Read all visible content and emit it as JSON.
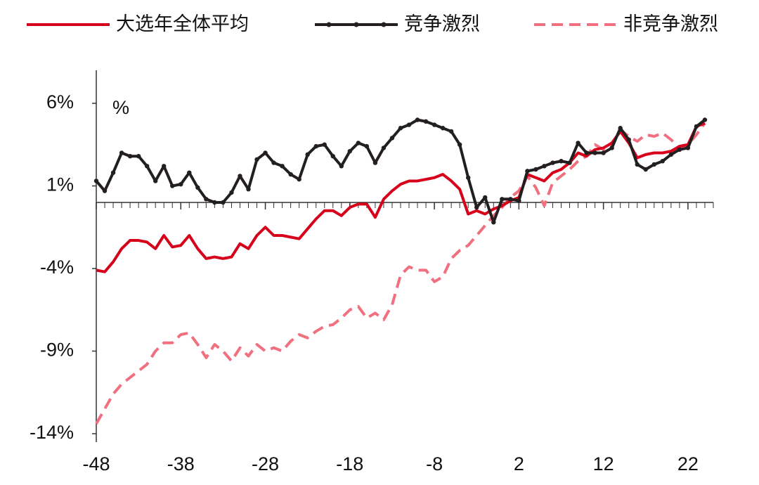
{
  "chart_data": {
    "type": "line",
    "annotation": "%",
    "x": [
      -48,
      -47,
      -46,
      -45,
      -44,
      -43,
      -42,
      -41,
      -40,
      -39,
      -38,
      -37,
      -36,
      -35,
      -34,
      -33,
      -32,
      -31,
      -30,
      -29,
      -28,
      -27,
      -26,
      -25,
      -24,
      -23,
      -22,
      -21,
      -20,
      -19,
      -18,
      -17,
      -16,
      -15,
      -14,
      -13,
      -12,
      -11,
      -10,
      -9,
      -8,
      -7,
      -6,
      -5,
      -4,
      -3,
      -2,
      -1,
      0,
      1,
      2,
      3,
      4,
      5,
      6,
      7,
      8,
      9,
      10,
      11,
      12,
      13,
      14,
      15,
      16,
      17,
      18,
      19,
      20,
      21,
      22,
      23,
      24
    ],
    "series": [
      {
        "name": "大选年全体平均",
        "color": "#d7001a",
        "dash": false,
        "marker": false,
        "values": [
          -4.1,
          -4.2,
          -3.6,
          -2.8,
          -2.3,
          -2.3,
          -2.4,
          -2.8,
          -2.0,
          -2.7,
          -2.6,
          -2.0,
          -2.8,
          -3.4,
          -3.3,
          -3.4,
          -3.3,
          -2.5,
          -2.8,
          -2.0,
          -1.5,
          -2.0,
          -2.0,
          -2.1,
          -2.2,
          -1.6,
          -1.0,
          -0.5,
          -0.5,
          -0.8,
          -0.3,
          -0.1,
          -0.1,
          -0.9,
          0.2,
          0.7,
          1.1,
          1.3,
          1.3,
          1.4,
          1.5,
          1.7,
          1.3,
          0.8,
          -0.7,
          -0.5,
          -0.7,
          -0.4,
          -0.2,
          0.1,
          0.3,
          1.7,
          1.5,
          1.3,
          1.8,
          2.0,
          2.4,
          3.0,
          2.8,
          3.2,
          3.3,
          3.6,
          4.3,
          3.6,
          2.7,
          2.9,
          3.0,
          3.0,
          3.1,
          3.4,
          3.5,
          4.6,
          4.8
        ]
      },
      {
        "name": "竞争激烈",
        "color": "#231f20",
        "dash": false,
        "marker": true,
        "values": [
          1.3,
          0.7,
          1.8,
          3.0,
          2.8,
          2.8,
          2.2,
          1.3,
          2.2,
          1.0,
          1.1,
          1.8,
          0.9,
          0.2,
          0.0,
          0.0,
          0.6,
          1.6,
          0.8,
          2.6,
          3.0,
          2.4,
          2.2,
          1.7,
          1.4,
          2.9,
          3.4,
          3.5,
          2.8,
          2.2,
          3.1,
          3.6,
          3.4,
          2.4,
          3.3,
          3.9,
          4.5,
          4.7,
          5.0,
          4.9,
          4.7,
          4.5,
          4.3,
          3.5,
          1.5,
          -0.3,
          0.3,
          -1.2,
          0.2,
          0.2,
          0.1,
          1.9,
          2.0,
          2.2,
          2.4,
          2.5,
          2.4,
          3.6,
          3.0,
          3.0,
          3.0,
          3.3,
          4.5,
          3.8,
          2.3,
          2.0,
          2.3,
          2.5,
          2.9,
          3.2,
          3.3,
          4.6,
          5.0
        ]
      },
      {
        "name": "非竞争激烈",
        "color": "#f07080",
        "dash": true,
        "marker": false,
        "values": [
          -13.4,
          -12.5,
          -11.6,
          -11.0,
          -10.6,
          -10.2,
          -9.8,
          -9.0,
          -8.5,
          -8.5,
          -8.0,
          -7.9,
          -8.6,
          -9.4,
          -8.6,
          -9.0,
          -9.6,
          -8.8,
          -9.3,
          -8.6,
          -9.0,
          -8.8,
          -9.0,
          -8.4,
          -8.0,
          -8.2,
          -7.8,
          -7.5,
          -7.4,
          -7.0,
          -6.5,
          -6.3,
          -7.0,
          -6.7,
          -7.1,
          -6.2,
          -4.4,
          -3.9,
          -4.1,
          -4.1,
          -4.8,
          -4.5,
          -3.4,
          -2.9,
          -2.6,
          -2.0,
          -1.4,
          -0.8,
          -0.3,
          0.3,
          0.7,
          1.6,
          0.9,
          -0.2,
          1.2,
          1.6,
          2.0,
          2.5,
          2.8,
          3.5,
          3.2,
          3.5,
          4.4,
          4.0,
          3.7,
          4.1,
          4.0,
          4.2,
          3.8,
          3.3,
          3.5,
          4.1,
          4.8
        ]
      }
    ],
    "xlim": [
      -48,
      25
    ],
    "xticks": [
      -48,
      -38,
      -28,
      -18,
      -8,
      2,
      12,
      22
    ],
    "ylim": [
      -14,
      8
    ],
    "yticks": [
      {
        "value": -14,
        "label": "-14%"
      },
      {
        "value": -9,
        "label": "-9%"
      },
      {
        "value": -4,
        "label": "-4%"
      },
      {
        "value": 1,
        "label": "1%"
      },
      {
        "value": 6,
        "label": "6%"
      }
    ],
    "legend": "top"
  }
}
